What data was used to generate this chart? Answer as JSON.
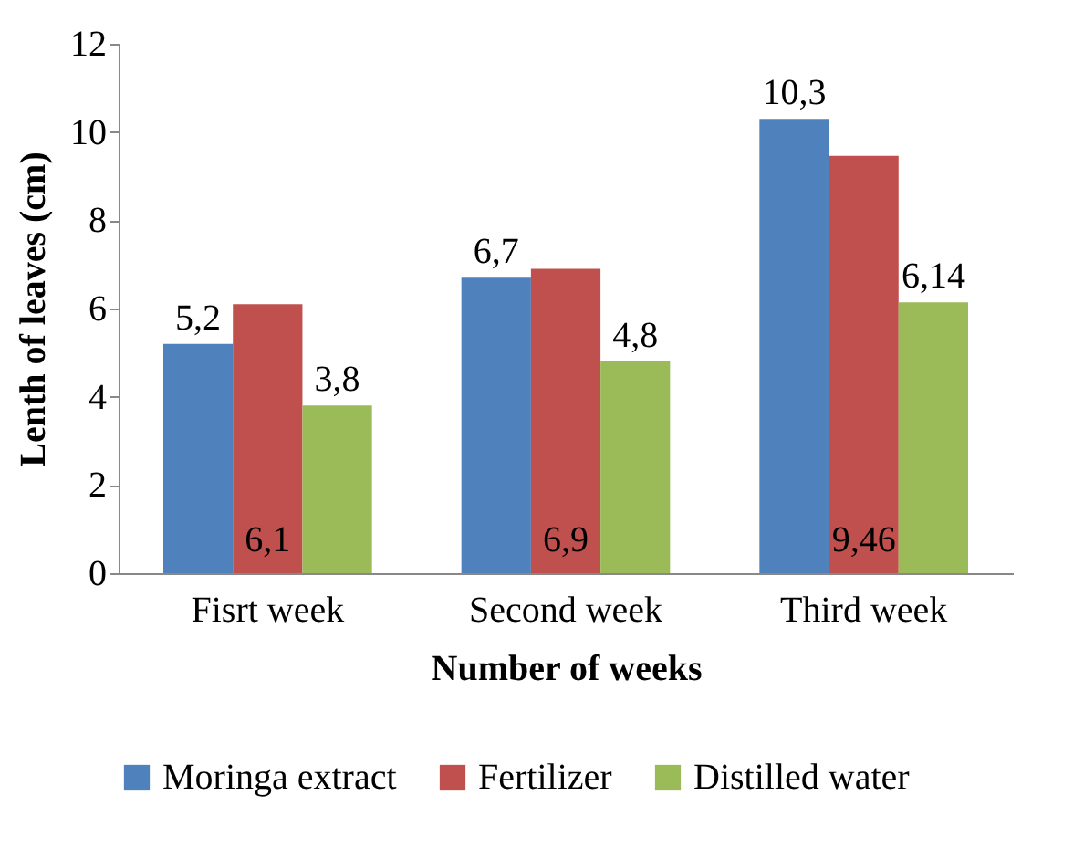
{
  "chart_data": {
    "type": "bar",
    "xlabel": "Number of weeks",
    "ylabel": "Lenth of leaves (cm)",
    "categories": [
      "Fisrt week",
      "Second week",
      "Third week"
    ],
    "series": [
      {
        "name": "Moringa extract",
        "color": "#4f81bd",
        "values": [
          5.2,
          6.7,
          10.3
        ],
        "value_labels": [
          "5,2",
          "6,7",
          "10,3"
        ]
      },
      {
        "name": "Fertilizer",
        "color": "#c0504d",
        "values": [
          6.1,
          6.9,
          9.46
        ],
        "value_labels": [
          "6,1",
          "6,9",
          "9,46"
        ]
      },
      {
        "name": "Distilled water",
        "color": "#9bbb59",
        "values": [
          3.8,
          4.8,
          6.14
        ],
        "value_labels": [
          "3,8",
          "4,8",
          "6,14"
        ]
      }
    ],
    "ylim": [
      0,
      12
    ],
    "yticks": [
      0,
      2,
      4,
      6,
      8,
      10,
      12
    ],
    "grid": false,
    "legend": "bottom"
  }
}
